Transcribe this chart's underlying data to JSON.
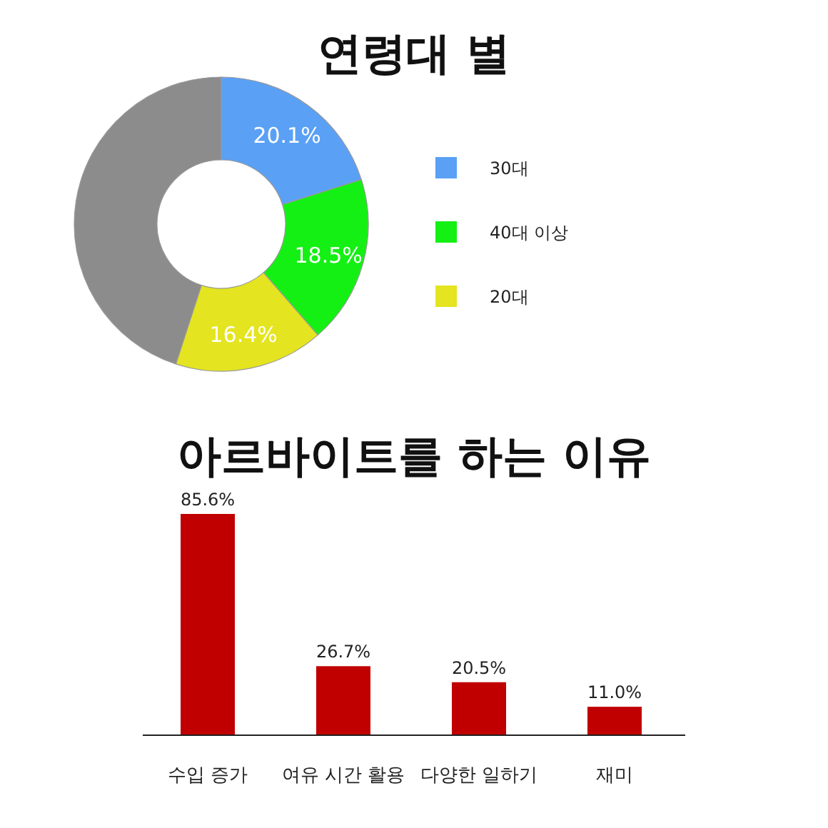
{
  "chart_data": [
    {
      "type": "donut",
      "title": "연령대 별",
      "categories": [
        "30대",
        "40대 이상",
        "20대",
        null
      ],
      "values": [
        20.1,
        18.5,
        16.4,
        45.0
      ],
      "colors": [
        "#5aa0f5",
        "#14f014",
        "#e4e420",
        "#8c8c8c"
      ],
      "value_labels": [
        "20.1%",
        "18.5%",
        "16.4%",
        null
      ],
      "legend": "right"
    },
    {
      "type": "bar",
      "title": "아르바이트를 하는 이유",
      "categories": [
        "수입 증가",
        "여유 시간 활용",
        "다양한 일하기",
        "재미"
      ],
      "values": [
        85.6,
        26.7,
        20.5,
        11.0
      ],
      "color": "#c00000",
      "value_labels": [
        "85.6%",
        "26.7%",
        "20.5%",
        "11.0%"
      ]
    }
  ]
}
